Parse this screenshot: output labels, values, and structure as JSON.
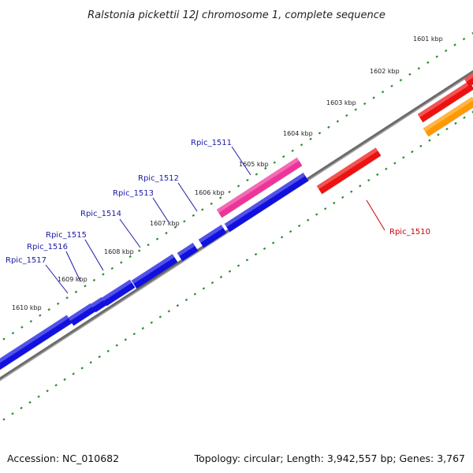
{
  "title": "Ralstonia pickettii 12J chromosome 1, complete sequence",
  "footer": {
    "accession": "Accession: NC_010682",
    "summary": "Topology: circular; Length: 3,942,557 bp; Genes: 3,767"
  },
  "ruler": {
    "ticks": [
      "1601 kbp",
      "1602 kbp",
      "1603 kbp",
      "1604 kbp",
      "1605 kbp",
      "1606 kbp",
      "1607 kbp",
      "1608 kbp",
      "1609 kbp",
      "1610 kbp"
    ]
  },
  "genes": {
    "labels": [
      "Rpic_1510",
      "Rpic_1511",
      "Rpic_1512",
      "Rpic_1513",
      "Rpic_1514",
      "Rpic_1515",
      "Rpic_1516",
      "Rpic_1517"
    ]
  },
  "colors": {
    "backbone": "#8a8a8a",
    "dots": "#2e8b2e",
    "gene_forward": "#1010e0",
    "gene_reverse": "#ee1111",
    "gene_pink": "#ee3399",
    "gene_orange": "#ff9900",
    "label_blue": "#1a1aa8",
    "label_red": "#cc0000"
  }
}
